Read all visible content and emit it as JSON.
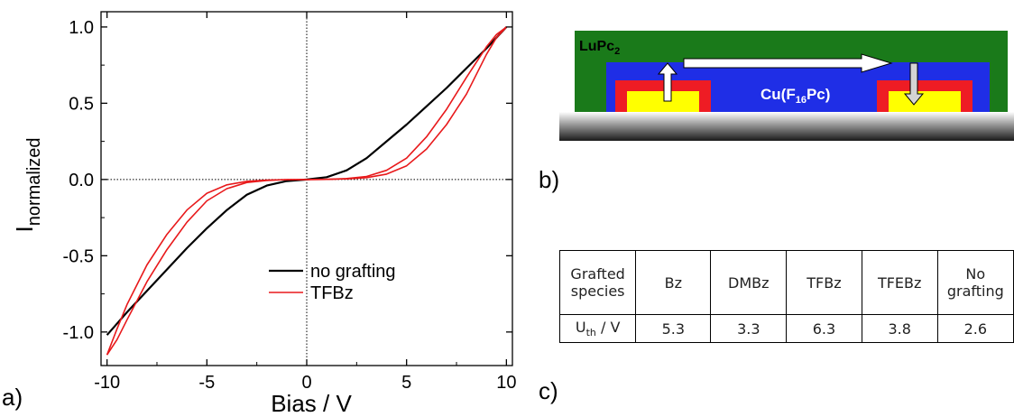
{
  "chart_data": {
    "type": "line",
    "xlabel": "Bias / V",
    "ylabel_main": "I",
    "ylabel_sub": "normalized",
    "xlim": [
      -10.3,
      10.3
    ],
    "ylim": [
      -1.22,
      1.1
    ],
    "xticks": [
      -10,
      -5,
      0,
      5,
      10
    ],
    "xtick_labels": [
      "-10",
      "-5",
      "0",
      "5",
      "10"
    ],
    "yticks": [
      -1.0,
      -0.5,
      0.0,
      0.5,
      1.0
    ],
    "ytick_labels": [
      "-1.0",
      "-0.5",
      "0.0",
      "0.5",
      "1.0"
    ],
    "legend_position": "lower-right",
    "series": [
      {
        "name": "no grafting",
        "color": "#000000",
        "x": [
          -10,
          -9,
          -8,
          -7,
          -6,
          -5,
          -4,
          -3,
          -2,
          -1,
          0,
          1,
          2,
          3,
          4,
          5,
          6,
          7,
          8,
          9,
          10
        ],
        "y": [
          -1.02,
          -0.87,
          -0.73,
          -0.59,
          -0.45,
          -0.32,
          -0.2,
          -0.1,
          -0.04,
          -0.01,
          0.0,
          0.015,
          0.06,
          0.14,
          0.25,
          0.36,
          0.48,
          0.6,
          0.73,
          0.86,
          1.0
        ]
      },
      {
        "name": "TFBz",
        "color": "#e8191b",
        "x": [
          -10,
          -9.5,
          -9,
          -8,
          -7,
          -6,
          -5,
          -4,
          -3,
          -2,
          -1,
          0,
          1,
          2,
          3,
          4,
          5,
          6,
          7,
          8,
          9,
          9.5,
          10
        ],
        "y": [
          -1.15,
          -0.98,
          -0.82,
          -0.56,
          -0.36,
          -0.2,
          -0.09,
          -0.035,
          -0.012,
          -0.004,
          -0.001,
          0.0,
          0.001,
          0.004,
          0.012,
          0.035,
          0.09,
          0.2,
          0.36,
          0.56,
          0.82,
          0.93,
          1.0
        ]
      },
      {
        "name": "",
        "color": "#e8191b",
        "x": [
          -10,
          -9.5,
          -9,
          -8,
          -7,
          -6,
          -5,
          -4,
          -3,
          -2,
          -1,
          0,
          1,
          2,
          3,
          4,
          5,
          6,
          7,
          8,
          9,
          9.5,
          10
        ],
        "y": [
          -1.15,
          -1.05,
          -0.92,
          -0.67,
          -0.46,
          -0.28,
          -0.14,
          -0.06,
          -0.02,
          -0.006,
          -0.001,
          0.0,
          0.001,
          0.006,
          0.02,
          0.06,
          0.14,
          0.28,
          0.46,
          0.67,
          0.87,
          0.95,
          1.0
        ]
      }
    ]
  },
  "labels": {
    "panel_a": "a)",
    "panel_b": "b)",
    "panel_c": "c)"
  },
  "schematic": {
    "top_layer_label": "LuPc",
    "top_layer_sub": "2",
    "middle_layer_label_pre": "Cu(F",
    "middle_layer_sub": "16",
    "middle_layer_label_post": "Pc)",
    "colors": {
      "green": "#1a7a1a",
      "blue": "#1f2ee6",
      "red": "#ee1c24",
      "yellow": "#ffff00"
    }
  },
  "table": {
    "header_cell": "Grafted species",
    "columns": [
      "Bz",
      "DMBz",
      "TFBz",
      "TFEBz",
      "No grafting"
    ],
    "row_label_main": "U",
    "row_label_sub": "th",
    "row_label_unit": " / V",
    "values": [
      "5.3",
      "3.3",
      "6.3",
      "3.8",
      "2.6"
    ]
  }
}
